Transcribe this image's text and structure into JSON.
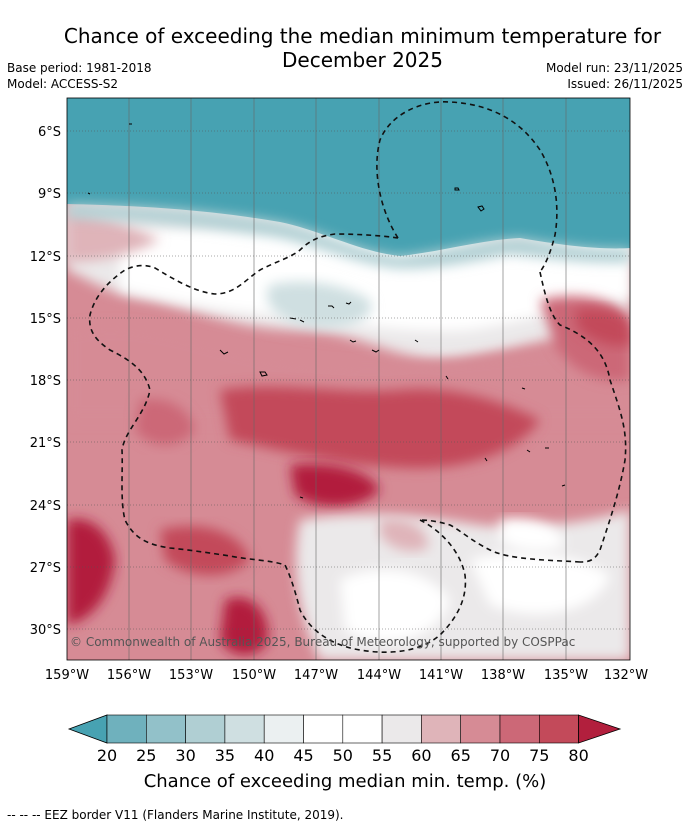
{
  "title_line1": "Chance of exceeding the median minimum temperature for",
  "title_line2": "December 2025",
  "base_period": "Base period: 1981-2018",
  "model": "Model: ACCESS-S2",
  "model_run": "Model run: 23/11/2025",
  "issued": "Issued: 26/11/2025",
  "copyright": "© Commonwealth of Australia 2025, Bureau of Meteorology, supported by COSPPac",
  "lat_labels": [
    "6°S",
    "9°S",
    "12°S",
    "15°S",
    "18°S",
    "21°S",
    "24°S",
    "27°S",
    "30°S"
  ],
  "lon_labels": [
    "159°W",
    "156°W",
    "153°W",
    "150°W",
    "147°W",
    "144°W",
    "141°W",
    "138°W",
    "135°W",
    "132°W"
  ],
  "colorbar": {
    "ticks": [
      "20",
      "25",
      "30",
      "35",
      "40",
      "45",
      "50",
      "55",
      "60",
      "65",
      "70",
      "75",
      "80"
    ],
    "colors": [
      "#47a2b2",
      "#6fb1bd",
      "#92c1c9",
      "#b0cfd3",
      "#cfdfe1",
      "#ebf0f1",
      "#ffffff",
      "#ffffff",
      "#ebe9ea",
      "#dfb4b9",
      "#d68b95",
      "#cc6877",
      "#c34a5a",
      "#b21f3d"
    ],
    "label": "Chance of exceeding median min. temp. (%)"
  },
  "footnote": "--  --  -- EEZ border V11 (Flanders Marine Institute, 2019)."
}
